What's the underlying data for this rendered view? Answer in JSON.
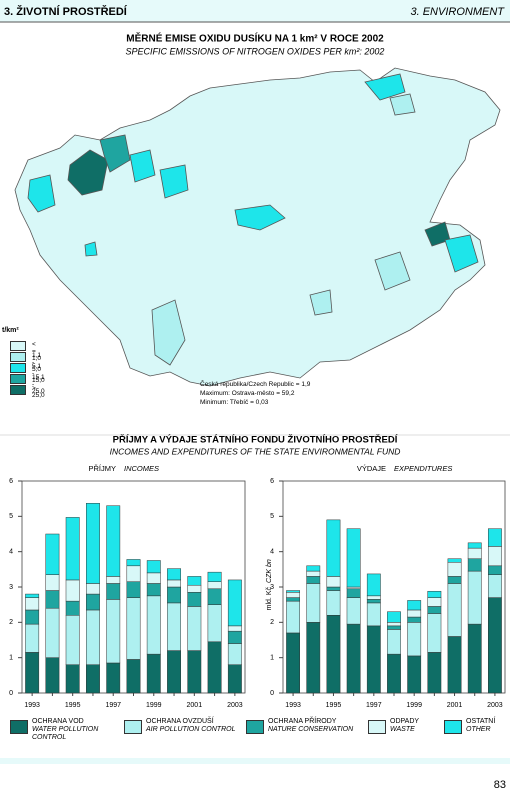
{
  "header": {
    "left": "3. ŽIVOTNÍ PROSTŘEDÍ",
    "right": "3. ENVIRONMENT"
  },
  "map": {
    "title": "MĚRNÉ EMISE OXIDU DUSÍKU NA 1 km² V ROCE 2002",
    "subtitle": "SPECIFIC EMISSIONS OF NITROGEN OXIDES PER km²: 2002",
    "legend_title": "t/km²",
    "legend": [
      {
        "label": "< = 1,0",
        "color": "#d8f8f8"
      },
      {
        "label": "1,1 - 5,0",
        "color": "#aef0f0"
      },
      {
        "label": "5,1 - 15,0",
        "color": "#1ee5ea"
      },
      {
        "label": "15,1 - 25,0",
        "color": "#1fa5a0"
      },
      {
        "label": "> 25,0",
        "color": "#0f6e66"
      }
    ],
    "notes": [
      "Česká republika/Czech Republic = 1,9",
      "Maximum: Ostrava-město = 59,2",
      "Minimum: Třebíč = 0,03"
    ]
  },
  "charts_title": "PŘÍJMY A VÝDAJE STÁTNÍHO FONDU ŽIVOTNÍHO PROSTŘEDÍ",
  "charts_subtitle": "INCOMES AND EXPENDITURES OF THE STATE ENVIRONMENTAL FUND",
  "legend": [
    {
      "name": "OCHRANA VOD",
      "name_en": "WATER POLLUTION CONTROL",
      "color": "#0f6e66"
    },
    {
      "name": "OCHRANA OVZDUŠÍ",
      "name_en": "AIR POLLUTION CONTROL",
      "color": "#aef0f0"
    },
    {
      "name": "OCHRANA PŘÍRODY",
      "name_en": "NATURE CONSERVATION",
      "color": "#1fa5a0"
    },
    {
      "name": "ODPADY",
      "name_en": "WASTE",
      "color": "#d8f8f8"
    },
    {
      "name": "OSTATNÍ",
      "name_en": "OTHER",
      "color": "#1ee5ea"
    }
  ],
  "chart_data": [
    {
      "type": "bar",
      "stacked": true,
      "title": "PŘÍJMY",
      "title_en": "INCOMES",
      "categories": [
        "1993",
        null,
        "1995",
        null,
        "1997",
        null,
        "1999",
        null,
        "2001",
        null,
        "2003"
      ],
      "ylim": [
        0,
        6
      ],
      "yticks": [
        0,
        1,
        2,
        3,
        4,
        5,
        6
      ],
      "series": [
        {
          "values": [
            1.15,
            1.0,
            0.8,
            0.8,
            0.85,
            0.95,
            1.1,
            1.2,
            1.2,
            1.45,
            0.8
          ]
        },
        {
          "values": [
            0.8,
            1.4,
            1.4,
            1.55,
            1.8,
            1.75,
            1.65,
            1.35,
            1.25,
            1.05,
            0.6
          ]
        },
        {
          "values": [
            0.4,
            0.5,
            0.4,
            0.45,
            0.45,
            0.45,
            0.35,
            0.45,
            0.4,
            0.45,
            0.35
          ]
        },
        {
          "values": [
            0.35,
            0.45,
            0.6,
            0.3,
            0.2,
            0.45,
            0.3,
            0.2,
            0.2,
            0.2,
            0.15
          ]
        },
        {
          "values": [
            0.1,
            1.15,
            1.77,
            2.27,
            2.0,
            0.18,
            0.35,
            0.32,
            0.25,
            0.27,
            1.3
          ]
        }
      ]
    },
    {
      "type": "bar",
      "stacked": true,
      "title": "VÝDAJE",
      "title_en": "EXPENDITURES",
      "ylabel": "mld. Kč",
      "ylabel_en": "CZK bn",
      "categories": [
        "1993",
        null,
        "1995",
        null,
        "1997",
        null,
        "1999",
        null,
        "2001",
        null,
        "2003"
      ],
      "ylim": [
        0,
        6
      ],
      "yticks": [
        0,
        1,
        2,
        3,
        4,
        5,
        6
      ],
      "series": [
        {
          "values": [
            1.7,
            2.0,
            2.2,
            1.95,
            1.9,
            1.1,
            1.05,
            1.15,
            1.6,
            1.95,
            2.7
          ]
        },
        {
          "values": [
            0.9,
            1.1,
            0.7,
            0.75,
            0.65,
            0.7,
            0.95,
            1.1,
            1.5,
            1.5,
            0.65
          ]
        },
        {
          "values": [
            0.1,
            0.2,
            0.1,
            0.25,
            0.1,
            0.1,
            0.15,
            0.2,
            0.2,
            0.35,
            0.25
          ]
        },
        {
          "values": [
            0.15,
            0.15,
            0.3,
            0.05,
            0.1,
            0.1,
            0.2,
            0.25,
            0.4,
            0.3,
            0.55
          ]
        },
        {
          "values": [
            0.05,
            0.15,
            1.6,
            1.65,
            0.62,
            0.3,
            0.27,
            0.18,
            0.1,
            0.15,
            0.5
          ]
        }
      ]
    }
  ],
  "page_number": "83"
}
